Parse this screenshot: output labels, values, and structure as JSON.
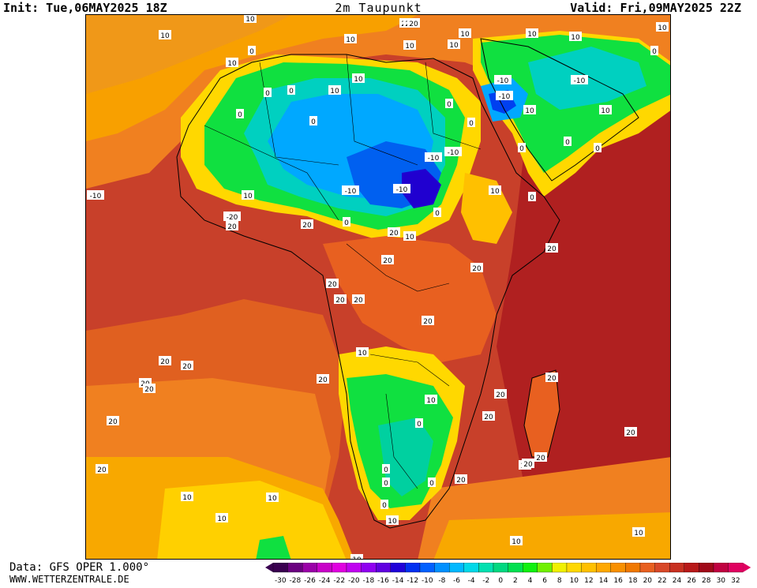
{
  "header": {
    "init": "Init: Tue,06MAY2025 18Z",
    "title": "2m Taupunkt",
    "valid": "Valid: Fri,09MAY2025 22Z"
  },
  "footer": {
    "data_source": "Data: GFS OPER 1.000°",
    "website": "WWW.WETTERZENTRALE.DE"
  },
  "legend": {
    "ticks": [
      "-30",
      "-28",
      "-26",
      "-24",
      "-22",
      "-20",
      "-18",
      "-16",
      "-14",
      "-12",
      "-10",
      "-8",
      "-6",
      "-4",
      "-2",
      "0",
      "2",
      "4",
      "6",
      "8",
      "10",
      "12",
      "14",
      "16",
      "18",
      "20",
      "22",
      "24",
      "26",
      "28",
      "30",
      "32"
    ],
    "colors": [
      "#3a0050",
      "#6a0080",
      "#9a00a8",
      "#c800c8",
      "#e000e0",
      "#c000f0",
      "#9000f0",
      "#6000e0",
      "#2000d8",
      "#0030f0",
      "#0060ff",
      "#0090ff",
      "#00b8ff",
      "#00d8e8",
      "#00e0b0",
      "#00d880",
      "#00e050",
      "#10f010",
      "#70f000",
      "#f0f000",
      "#ffd800",
      "#ffc000",
      "#ffa800",
      "#f89000",
      "#f07800",
      "#e86020",
      "#d84828",
      "#c83020",
      "#b81818",
      "#a00818",
      "#c00040",
      "#e00060"
    ]
  },
  "map": {
    "contour_labels": [
      "10",
      "10",
      "10",
      "10",
      "10",
      "10",
      "10",
      "10",
      "10",
      "10",
      "10",
      "10",
      "10",
      "10",
      "10",
      "10",
      "10",
      "10",
      "10",
      "10",
      "10",
      "10",
      "10",
      "10",
      "10",
      "10",
      "10",
      "0",
      "0",
      "0",
      "0",
      "0",
      "0",
      "0",
      "0",
      "0",
      "0",
      "0",
      "0",
      "0",
      "0",
      "0",
      "0",
      "0",
      "0",
      "0",
      "-10",
      "-10",
      "-10",
      "-10",
      "-10",
      "-10",
      "-10",
      "-10",
      "-20",
      "20",
      "20",
      "20",
      "20",
      "20",
      "20",
      "20",
      "20",
      "20",
      "20",
      "20",
      "20",
      "20",
      "20",
      "20",
      "20",
      "20",
      "20",
      "20",
      "20",
      "20",
      "20",
      "20",
      "20",
      "20",
      "20",
      "20"
    ]
  }
}
